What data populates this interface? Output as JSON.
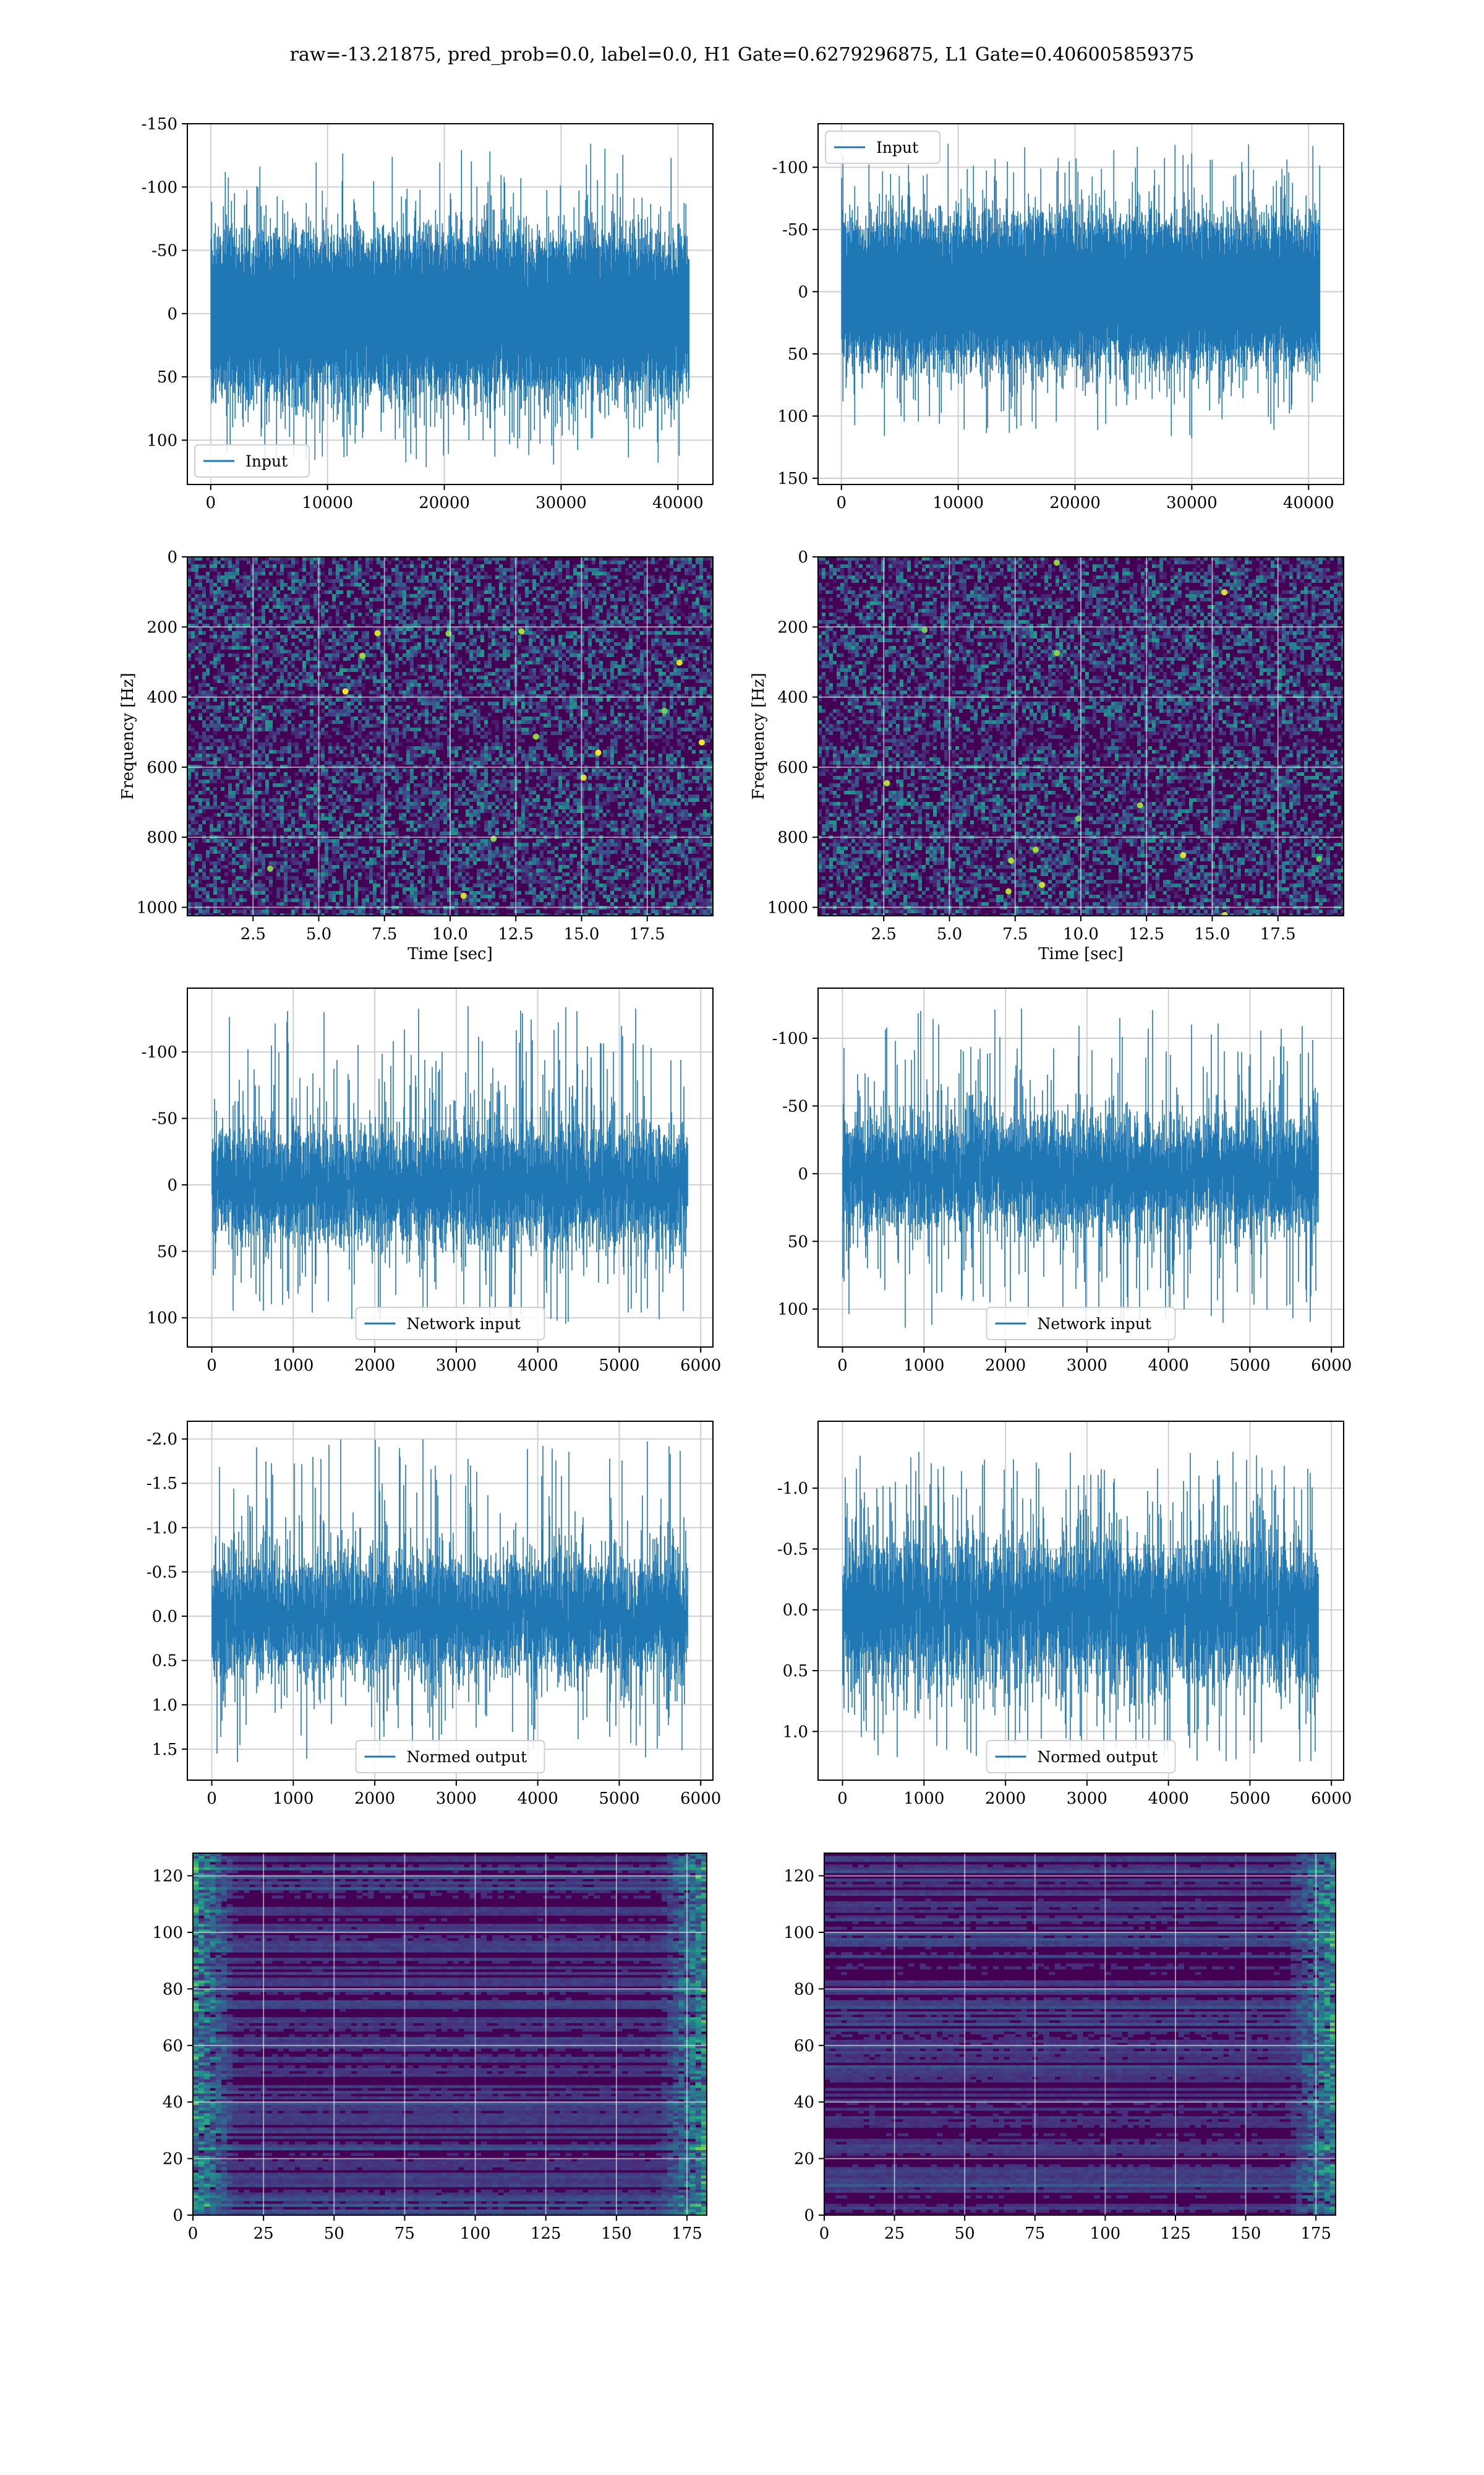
{
  "figure": {
    "title": "raw=-13.21875, pred_prob=0.0, label=0.0, H1 Gate=0.6279296875, L1 Gate=0.406005859375"
  },
  "colors": {
    "line": "#1f77b4",
    "grid": "#cfcfcf",
    "axes": "#000000",
    "viridis": [
      "#440154",
      "#472c7a",
      "#3b518b",
      "#2c718e",
      "#21908d",
      "#27ad81",
      "#5cc863",
      "#aadc32",
      "#fde725"
    ]
  },
  "chart_data": [
    {
      "id": "h1-input",
      "type": "line",
      "series": [
        {
          "name": "Input",
          "n_points": 40960,
          "amplitude_std": 26,
          "peak_range": [
            -135,
            122
          ]
        }
      ],
      "xlim": [
        -2000,
        43000
      ],
      "ylim": [
        -150,
        135
      ],
      "xticks": [
        0,
        10000,
        20000,
        30000,
        40000
      ],
      "yticks": [
        -150,
        -100,
        -50,
        0,
        50,
        100
      ],
      "xlabel": "",
      "ylabel": "",
      "grid": true,
      "legend_position": "lower-left"
    },
    {
      "id": "l1-input",
      "type": "line",
      "series": [
        {
          "name": "Input",
          "n_points": 40960,
          "amplitude_std": 24,
          "peak_range": [
            -120,
            118
          ]
        }
      ],
      "xlim": [
        -2000,
        43000
      ],
      "ylim": [
        -135,
        155
      ],
      "xticks": [
        0,
        10000,
        20000,
        30000,
        40000
      ],
      "yticks": [
        -100,
        -50,
        0,
        50,
        100,
        150
      ],
      "xlabel": "",
      "ylabel": "",
      "grid": true,
      "legend_position": "upper-left"
    },
    {
      "id": "h1-spectrogram",
      "type": "heatmap",
      "description": "spectrogram",
      "colormap": "viridis",
      "xlim": [
        0,
        20
      ],
      "ylim": [
        0,
        1024
      ],
      "xticks": [
        2.5,
        5.0,
        7.5,
        10.0,
        12.5,
        15.0,
        17.5
      ],
      "yticks": [
        0,
        200,
        400,
        600,
        800,
        1000
      ],
      "xlabel": "Time [sec]",
      "ylabel": "Frequency [Hz]",
      "grid": true
    },
    {
      "id": "l1-spectrogram",
      "type": "heatmap",
      "description": "spectrogram",
      "colormap": "viridis",
      "xlim": [
        0,
        20
      ],
      "ylim": [
        0,
        1024
      ],
      "xticks": [
        2.5,
        5.0,
        7.5,
        10.0,
        12.5,
        15.0,
        17.5
      ],
      "yticks": [
        0,
        200,
        400,
        600,
        800,
        1000
      ],
      "xlabel": "Time [sec]",
      "ylabel": "Frequency [Hz]",
      "grid": true
    },
    {
      "id": "h1-network-input",
      "type": "line",
      "series": [
        {
          "name": "Network input",
          "n_points": 5840,
          "amplitude_std": 22,
          "peak_range": [
            -135,
            105
          ]
        }
      ],
      "xlim": [
        -300,
        6150
      ],
      "ylim": [
        -148,
        122
      ],
      "xticks": [
        0,
        1000,
        2000,
        3000,
        4000,
        5000,
        6000
      ],
      "yticks": [
        -100,
        -50,
        0,
        50,
        100
      ],
      "xlabel": "",
      "ylabel": "",
      "grid": true,
      "legend_position": "lower-center"
    },
    {
      "id": "l1-network-input",
      "type": "line",
      "series": [
        {
          "name": "Network input",
          "n_points": 5840,
          "amplitude_std": 21,
          "peak_range": [
            -125,
            115
          ]
        }
      ],
      "xlim": [
        -300,
        6150
      ],
      "ylim": [
        -137,
        128
      ],
      "xticks": [
        0,
        1000,
        2000,
        3000,
        4000,
        5000,
        6000
      ],
      "yticks": [
        -100,
        -50,
        0,
        50,
        100
      ],
      "xlabel": "",
      "ylabel": "",
      "grid": true,
      "legend_position": "lower-center"
    },
    {
      "id": "h1-normed-output",
      "type": "line",
      "series": [
        {
          "name": "Normed output",
          "n_points": 5840,
          "amplitude_std": 0.34,
          "peak_range": [
            -2.0,
            1.65
          ]
        }
      ],
      "xlim": [
        -300,
        6150
      ],
      "ylim": [
        -2.2,
        1.85
      ],
      "xticks": [
        0,
        1000,
        2000,
        3000,
        4000,
        5000,
        6000
      ],
      "yticks": [
        -2.0,
        -1.5,
        -1.0,
        -0.5,
        0.0,
        0.5,
        1.0,
        1.5
      ],
      "xlabel": "",
      "ylabel": "",
      "grid": true,
      "legend_position": "lower-center"
    },
    {
      "id": "l1-normed-output",
      "type": "line",
      "series": [
        {
          "name": "Normed output",
          "n_points": 5840,
          "amplitude_std": 0.3,
          "peak_range": [
            -1.3,
            1.25
          ]
        }
      ],
      "xlim": [
        -300,
        6150
      ],
      "ylim": [
        -1.55,
        1.4
      ],
      "xticks": [
        0,
        1000,
        2000,
        3000,
        4000,
        5000,
        6000
      ],
      "yticks": [
        -1.0,
        -0.5,
        0.0,
        0.5,
        1.0
      ],
      "xlabel": "",
      "ylabel": "",
      "grid": true,
      "legend_position": "lower-center"
    },
    {
      "id": "h1-feature-map",
      "type": "heatmap",
      "description": "feature map",
      "colormap": "viridis",
      "n_rows": 128,
      "n_cols": 182,
      "xlim": [
        0,
        182
      ],
      "ylim": [
        128,
        0
      ],
      "xticks": [
        0,
        25,
        50,
        75,
        100,
        125,
        150,
        175
      ],
      "yticks": [
        0,
        20,
        40,
        60,
        80,
        100,
        120
      ],
      "xlabel": "",
      "ylabel": "",
      "grid": true,
      "hot_edge": "both"
    },
    {
      "id": "l1-feature-map",
      "type": "heatmap",
      "description": "feature map",
      "colormap": "viridis",
      "n_rows": 128,
      "n_cols": 182,
      "xlim": [
        0,
        182
      ],
      "ylim": [
        128,
        0
      ],
      "xticks": [
        0,
        25,
        50,
        75,
        100,
        125,
        150,
        175
      ],
      "yticks": [
        0,
        20,
        40,
        60,
        80,
        100,
        120
      ],
      "xlabel": "",
      "ylabel": "",
      "grid": true,
      "hot_edge": "right"
    }
  ]
}
